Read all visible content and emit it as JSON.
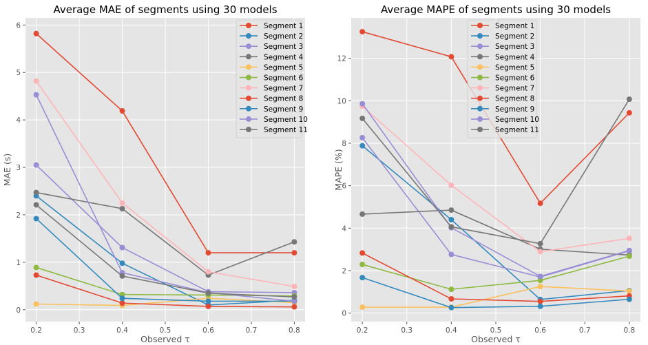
{
  "chart_data": [
    {
      "type": "line",
      "title": "Average MAE of segments using 30 models",
      "xlabel": "Observed τ",
      "ylabel": "MAE (s)",
      "x": [
        0.2,
        0.4,
        0.6,
        0.8
      ],
      "xlim": [
        0.175,
        0.825
      ],
      "ylim": [
        -0.25,
        6.15
      ],
      "xticks": [
        "0.2",
        "0.3",
        "0.4",
        "0.5",
        "0.6",
        "0.7",
        "0.8"
      ],
      "yticks": [
        "0",
        "1",
        "2",
        "3",
        "4",
        "5",
        "6"
      ],
      "grid": true,
      "legend_position": "top-right",
      "series": [
        {
          "name": "Segment 1",
          "color": "#E24A33",
          "values": [
            5.82,
            4.19,
            1.2,
            1.2
          ]
        },
        {
          "name": "Segment 2",
          "color": "#348ABD",
          "values": [
            2.4,
            0.98,
            0.1,
            0.2
          ]
        },
        {
          "name": "Segment 3",
          "color": "#988ED5",
          "values": [
            3.05,
            1.31,
            0.38,
            0.36
          ]
        },
        {
          "name": "Segment 4",
          "color": "#777777",
          "values": [
            2.47,
            2.13,
            0.73,
            1.43
          ]
        },
        {
          "name": "Segment 5",
          "color": "#FBC15E",
          "values": [
            0.12,
            0.09,
            0.24,
            0.15
          ]
        },
        {
          "name": "Segment 6",
          "color": "#8EBA42",
          "values": [
            0.89,
            0.32,
            0.31,
            0.29
          ]
        },
        {
          "name": "Segment 7",
          "color": "#FFB5B8",
          "values": [
            4.82,
            2.25,
            0.8,
            0.49
          ]
        },
        {
          "name": "Segment 8",
          "color": "#E24A33",
          "values": [
            0.73,
            0.14,
            0.07,
            0.06
          ]
        },
        {
          "name": "Segment 9",
          "color": "#348ABD",
          "values": [
            1.92,
            0.24,
            0.18,
            0.18
          ]
        },
        {
          "name": "Segment 10",
          "color": "#988ED5",
          "values": [
            4.53,
            0.78,
            0.36,
            0.18
          ]
        },
        {
          "name": "Segment 11",
          "color": "#777777",
          "values": [
            2.21,
            0.71,
            0.35,
            0.27
          ]
        }
      ]
    },
    {
      "type": "line",
      "title": "Average MAPE of segments using 30 models",
      "xlabel": "Observed τ",
      "ylabel": "MAPE (%)",
      "x": [
        0.2,
        0.4,
        0.6,
        0.8
      ],
      "xlim": [
        0.175,
        0.825
      ],
      "ylim": [
        -0.4,
        13.9
      ],
      "xticks": [
        "0.2",
        "0.3",
        "0.4",
        "0.5",
        "0.6",
        "0.7",
        "0.8"
      ],
      "yticks": [
        "0",
        "2",
        "4",
        "6",
        "8",
        "10",
        "12"
      ],
      "grid": true,
      "legend_position": "top-center",
      "series": [
        {
          "name": "Segment 1",
          "color": "#E24A33",
          "values": [
            13.25,
            12.07,
            5.17,
            9.43
          ]
        },
        {
          "name": "Segment 2",
          "color": "#348ABD",
          "values": [
            7.88,
            4.4,
            0.64,
            1.06
          ]
        },
        {
          "name": "Segment 3",
          "color": "#988ED5",
          "values": [
            8.26,
            2.76,
            1.7,
            2.93
          ]
        },
        {
          "name": "Segment 4",
          "color": "#777777",
          "values": [
            4.66,
            4.85,
            3.01,
            2.73
          ]
        },
        {
          "name": "Segment 5",
          "color": "#FBC15E",
          "values": [
            0.28,
            0.28,
            1.25,
            1.04
          ]
        },
        {
          "name": "Segment 6",
          "color": "#8EBA42",
          "values": [
            2.29,
            1.12,
            1.54,
            2.68
          ]
        },
        {
          "name": "Segment 7",
          "color": "#FFB5B8",
          "values": [
            9.74,
            6.02,
            2.89,
            3.52
          ]
        },
        {
          "name": "Segment 8",
          "color": "#E24A33",
          "values": [
            2.83,
            0.67,
            0.55,
            0.81
          ]
        },
        {
          "name": "Segment 9",
          "color": "#348ABD",
          "values": [
            1.67,
            0.26,
            0.32,
            0.65
          ]
        },
        {
          "name": "Segment 10",
          "color": "#988ED5",
          "values": [
            9.86,
            4.02,
            1.73,
            2.95
          ]
        },
        {
          "name": "Segment 11",
          "color": "#777777",
          "values": [
            9.17,
            4.06,
            3.27,
            10.07
          ]
        }
      ]
    }
  ]
}
